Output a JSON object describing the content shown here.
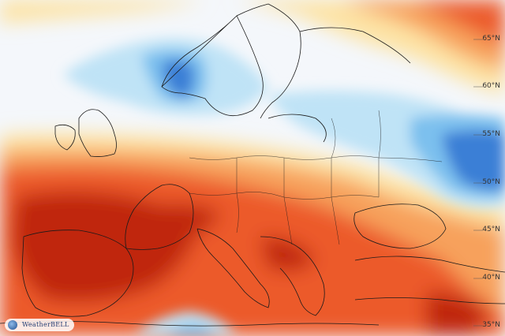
{
  "map": {
    "latitude_labels": [
      "65°N",
      "60°N",
      "55°N",
      "50°N",
      "45°N",
      "40°N",
      "35°N"
    ],
    "anomaly_colors": {
      "strong_warm": "#c0270c",
      "warm": "#ec5a2a",
      "mild_warm": "#f7a15c",
      "slight_warm": "#fde3a4",
      "neutral": "#f4f7fb",
      "slight_cool": "#bfe3f6",
      "cool": "#7cc0ee",
      "strong_cool": "#3b7fd6"
    }
  },
  "branding": {
    "logo_text": "WeatherBELL"
  }
}
